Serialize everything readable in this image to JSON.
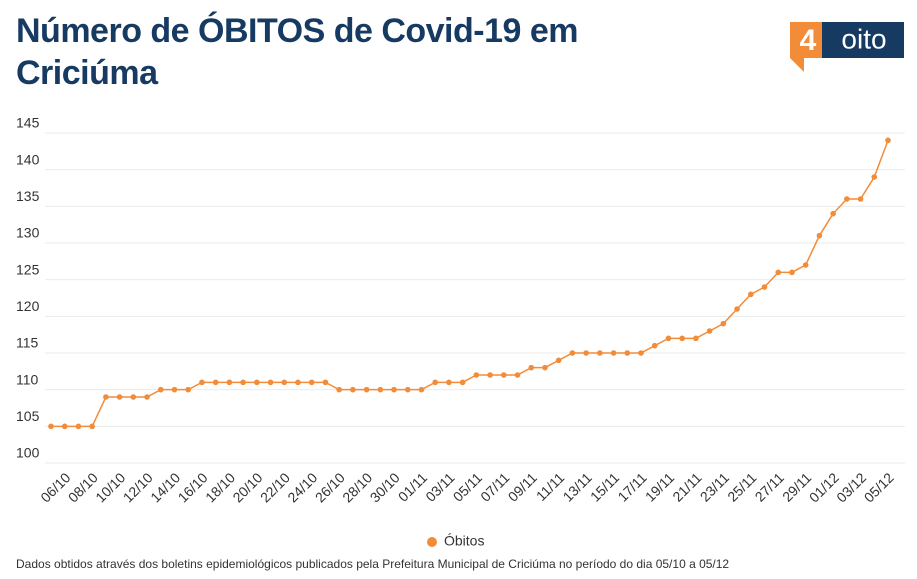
{
  "chart_data": {
    "type": "line",
    "title": "Número de ÓBITOS de Covid-19 em Criciúma",
    "logo": {
      "digit": "4",
      "word": "oito"
    },
    "categories": [
      null,
      "06/10",
      null,
      "08/10",
      null,
      "10/10",
      null,
      "12/10",
      null,
      "14/10",
      null,
      "16/10",
      null,
      "18/10",
      null,
      "20/10",
      null,
      "22/10",
      null,
      "24/10",
      null,
      "26/10",
      null,
      "28/10",
      null,
      "30/10",
      null,
      "01/11",
      null,
      "03/11",
      null,
      "05/11",
      null,
      "07/11",
      null,
      "09/11",
      null,
      "11/11",
      null,
      "13/11",
      null,
      "15/11",
      null,
      "17/11",
      null,
      "19/11",
      null,
      "21/11",
      null,
      "23/11",
      null,
      "25/11",
      null,
      "27/11",
      null,
      "29/11",
      null,
      "01/12",
      null,
      "03/12",
      null,
      "05/12"
    ],
    "series": [
      {
        "name": "Óbitos",
        "color": "#f28c38",
        "values": [
          105,
          105,
          105,
          105,
          109,
          109,
          109,
          109,
          110,
          110,
          110,
          111,
          111,
          111,
          111,
          111,
          111,
          111,
          111,
          111,
          111,
          110,
          110,
          110,
          110,
          110,
          110,
          110,
          111,
          111,
          111,
          112,
          112,
          112,
          112,
          113,
          113,
          114,
          115,
          115,
          115,
          115,
          115,
          115,
          116,
          117,
          117,
          117,
          118,
          119,
          121,
          123,
          124,
          126,
          126,
          127,
          131,
          134,
          136,
          136,
          139,
          144
        ]
      }
    ],
    "ylim": [
      100,
      145
    ],
    "yticks": [
      100,
      105,
      110,
      115,
      120,
      125,
      130,
      135,
      140,
      145
    ],
    "grid": true,
    "legend": "bottom",
    "note": "Dados obtidos através dos boletins epidemiológicos publicados pela Prefeitura Municipal de Criciúma no período do dia 05/10 a 05/12"
  }
}
